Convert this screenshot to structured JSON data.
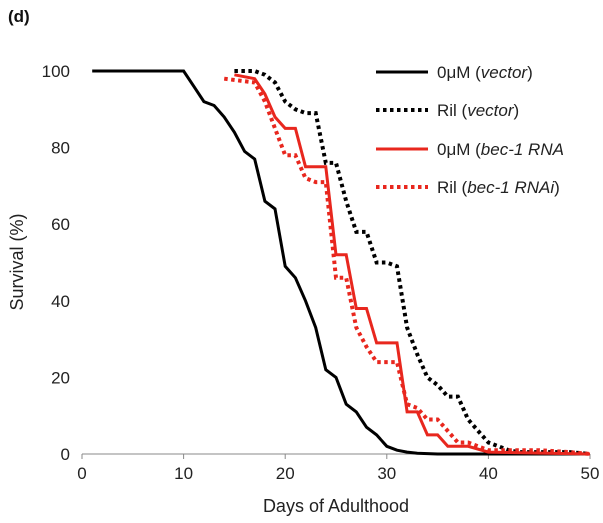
{
  "panel_label": "(d)",
  "chart_data": {
    "type": "line",
    "title": "",
    "xlabel": "Days of Adulthood",
    "ylabel": "Survival (%)",
    "xlim": [
      0,
      50
    ],
    "ylim": [
      0,
      100
    ],
    "xticks": [
      0,
      10,
      20,
      30,
      40,
      50
    ],
    "yticks": [
      0,
      20,
      40,
      60,
      80,
      100
    ],
    "grid": false,
    "legend_position": "top-right",
    "series": [
      {
        "name": "0μM (vector)",
        "name_prefix": "0μM (",
        "name_italic": "vector",
        "name_suffix": ")",
        "color": "#000000",
        "dash": "solid",
        "x": [
          1,
          10,
          11,
          12,
          13,
          14,
          15,
          16,
          17,
          18,
          19,
          20,
          21,
          22,
          23,
          24,
          25,
          26,
          27,
          28,
          29,
          30,
          31,
          32,
          33,
          35,
          40,
          45,
          50
        ],
        "y": [
          100,
          100,
          96,
          92,
          91,
          88,
          84,
          79,
          77,
          66,
          64,
          49,
          46,
          40,
          33,
          22,
          20,
          13,
          11,
          7,
          5,
          2,
          1,
          0.5,
          0.2,
          0,
          0,
          0,
          0
        ]
      },
      {
        "name": "Ril (vector)",
        "name_prefix": "Ril (",
        "name_italic": "vector",
        "name_suffix": ")",
        "color": "#000000",
        "dash": "dotted",
        "x": [
          15,
          17,
          18,
          19,
          20,
          21,
          22,
          23,
          24,
          25,
          26,
          27,
          28,
          29,
          30,
          31,
          32,
          33,
          34,
          35,
          36,
          37,
          38,
          39,
          40,
          41,
          42,
          43,
          45,
          48,
          50
        ],
        "y": [
          100,
          100,
          99,
          97,
          92,
          90,
          89,
          89,
          76,
          76,
          66,
          58,
          58,
          50,
          50,
          49,
          33,
          26,
          20,
          18,
          15,
          15,
          9,
          6,
          3,
          2,
          1,
          0.5,
          0.5,
          0.5,
          0
        ]
      },
      {
        "name": "0μM (bec-1 RNAi)",
        "name_prefix": "0μM (",
        "name_italic": "bec-1 RNA",
        "name_suffix": "",
        "color": "#e8271e",
        "dash": "solid",
        "x": [
          15,
          17,
          18,
          19,
          20,
          21,
          22,
          23,
          24,
          25,
          26,
          27,
          28,
          29,
          30,
          31,
          32,
          33,
          34,
          35,
          36,
          37,
          38,
          40,
          50
        ],
        "y": [
          99,
          98,
          94,
          88,
          85,
          85,
          75,
          75,
          75,
          52,
          52,
          38,
          38,
          29,
          29,
          29,
          11,
          11,
          5,
          5,
          2,
          2,
          2,
          0.5,
          0
        ]
      },
      {
        "name": "Ril (bec-1 RNAi)",
        "name_prefix": "Ril (",
        "name_italic": "bec-1 RNAi",
        "name_suffix": ")",
        "color": "#e8271e",
        "dash": "dotted",
        "x": [
          14,
          17,
          18,
          19,
          20,
          21,
          22,
          23,
          24,
          25,
          26,
          27,
          28,
          29,
          30,
          31,
          32,
          33,
          34,
          35,
          36,
          37,
          38,
          39,
          40,
          42,
          45,
          48,
          50
        ],
        "y": [
          98,
          97,
          92,
          85,
          78,
          78,
          72,
          71,
          71,
          46,
          46,
          33,
          28,
          24,
          24,
          24,
          13,
          12,
          9,
          9,
          6,
          3,
          3,
          2,
          1,
          1,
          1,
          0.5,
          0
        ]
      }
    ]
  }
}
